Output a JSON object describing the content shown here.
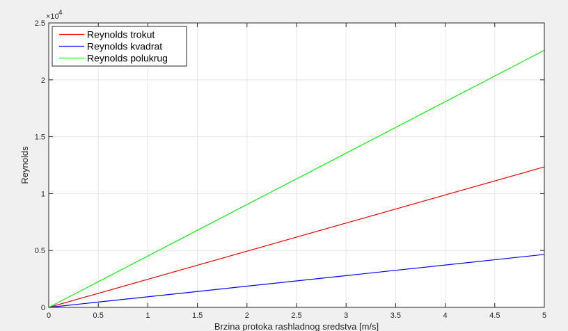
{
  "chart_data": {
    "type": "line",
    "title": "",
    "xlabel": "Brzina protoka rashladnog sredstva [m/s]",
    "ylabel": "Reynolds",
    "xlim": [
      0,
      5
    ],
    "ylim": [
      0,
      25000
    ],
    "x_ticks": [
      0,
      0.5,
      1,
      1.5,
      2,
      2.5,
      3,
      3.5,
      4,
      4.5,
      5
    ],
    "x_tick_labels": [
      "0",
      "0.5",
      "1",
      "1.5",
      "2",
      "2.5",
      "3",
      "3.5",
      "4",
      "4.5",
      "5"
    ],
    "y_ticks": [
      0,
      5000,
      10000,
      15000,
      20000,
      25000
    ],
    "y_tick_labels": [
      "0",
      "0.5",
      "1",
      "1.5",
      "2",
      "2.5"
    ],
    "y_multiplier_base": "×10",
    "y_multiplier_exponent": "4",
    "grid": true,
    "legend_position": "top-left",
    "series": [
      {
        "name": "Reynolds trokut",
        "color": "#ff0000",
        "x": [
          0,
          5
        ],
        "y": [
          0,
          12350
        ]
      },
      {
        "name": "Reynolds kvadrat",
        "color": "#0000ff",
        "x": [
          0,
          5
        ],
        "y": [
          0,
          4650
        ]
      },
      {
        "name": "Reynolds polukrug",
        "color": "#00ff00",
        "x": [
          0,
          5
        ],
        "y": [
          0,
          22600
        ]
      }
    ]
  }
}
